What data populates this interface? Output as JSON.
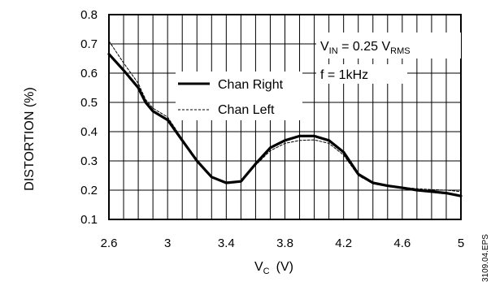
{
  "chart_data": {
    "type": "line",
    "xlabel": {
      "main": "V",
      "sub": "C",
      "unit": "(V)"
    },
    "ylabel": "DISTORTION (%)",
    "xlim": [
      2.6,
      5.0
    ],
    "ylim": [
      0.1,
      0.8
    ],
    "xticks": [
      2.6,
      3.0,
      3.4,
      3.8,
      4.2,
      4.6,
      5.0
    ],
    "xtick_labels": [
      "2.6",
      "3",
      "3.4",
      "3.8",
      "4.2",
      "4.6",
      "5"
    ],
    "yticks": [
      0.1,
      0.2,
      0.3,
      0.4,
      0.5,
      0.6,
      0.7,
      0.8
    ],
    "ytick_labels": [
      "0.1",
      "0.2",
      "0.3",
      "0.4",
      "0.5",
      "0.6",
      "0.7",
      "0.8"
    ],
    "grid": true,
    "legend_position": "center-left",
    "annotations": {
      "vin": {
        "main": "V",
        "sub1": "IN",
        "mid": " = 0.25 V",
        "sub2": "RMS"
      },
      "freq": "f = 1kHz"
    },
    "figure_code": "3109.04.EPS",
    "series": [
      {
        "name": "Chan Right",
        "style": "solid",
        "x": [
          2.6,
          2.7,
          2.8,
          2.85,
          2.9,
          3.0,
          3.1,
          3.2,
          3.3,
          3.4,
          3.5,
          3.6,
          3.7,
          3.8,
          3.9,
          4.0,
          4.1,
          4.2,
          4.3,
          4.4,
          4.5,
          4.6,
          4.7,
          4.8,
          4.9,
          5.0
        ],
        "y": [
          0.665,
          0.61,
          0.55,
          0.5,
          0.47,
          0.44,
          0.37,
          0.3,
          0.245,
          0.225,
          0.23,
          0.29,
          0.345,
          0.37,
          0.385,
          0.385,
          0.37,
          0.33,
          0.255,
          0.225,
          0.215,
          0.208,
          0.2,
          0.195,
          0.19,
          0.18
        ]
      },
      {
        "name": "Chan Left",
        "style": "dashed",
        "x": [
          2.6,
          2.7,
          2.8,
          2.85,
          2.9,
          3.0,
          3.1,
          3.2,
          3.3,
          3.4,
          3.5,
          3.6,
          3.7,
          3.8,
          3.9,
          4.0,
          4.1,
          4.2,
          4.3,
          4.4,
          4.5,
          4.6,
          4.7,
          4.8,
          4.9,
          5.0
        ],
        "y": [
          0.71,
          0.635,
          0.565,
          0.51,
          0.48,
          0.45,
          0.375,
          0.305,
          0.245,
          0.228,
          0.228,
          0.285,
          0.335,
          0.36,
          0.37,
          0.372,
          0.36,
          0.32,
          0.25,
          0.222,
          0.215,
          0.21,
          0.205,
          0.202,
          0.2,
          0.195
        ]
      }
    ]
  }
}
